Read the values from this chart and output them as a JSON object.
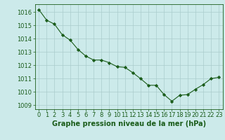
{
  "x": [
    0,
    1,
    2,
    3,
    4,
    5,
    6,
    7,
    8,
    9,
    10,
    11,
    12,
    13,
    14,
    15,
    16,
    17,
    18,
    19,
    20,
    21,
    22,
    23
  ],
  "y": [
    1016.2,
    1015.4,
    1015.1,
    1014.3,
    1013.9,
    1013.2,
    1012.7,
    1012.4,
    1012.4,
    1012.2,
    1011.9,
    1011.85,
    1011.45,
    1011.0,
    1010.5,
    1010.5,
    1009.8,
    1009.3,
    1009.75,
    1009.8,
    1010.2,
    1010.55,
    1011.0,
    1011.1
  ],
  "line_color": "#1a5c1a",
  "marker": "D",
  "marker_size": 2.2,
  "bg_color": "#cceaea",
  "grid_color": "#aacccc",
  "xlabel": "Graphe pression niveau de la mer (hPa)",
  "xlabel_fontsize": 7,
  "ylabel_ticks": [
    1009,
    1010,
    1011,
    1012,
    1013,
    1014,
    1015,
    1016
  ],
  "ylim": [
    1008.7,
    1016.6
  ],
  "xlim": [
    -0.5,
    23.5
  ],
  "tick_fontsize": 6,
  "tick_color": "#1a5c1a",
  "label_color": "#1a5c1a",
  "linewidth": 0.8
}
